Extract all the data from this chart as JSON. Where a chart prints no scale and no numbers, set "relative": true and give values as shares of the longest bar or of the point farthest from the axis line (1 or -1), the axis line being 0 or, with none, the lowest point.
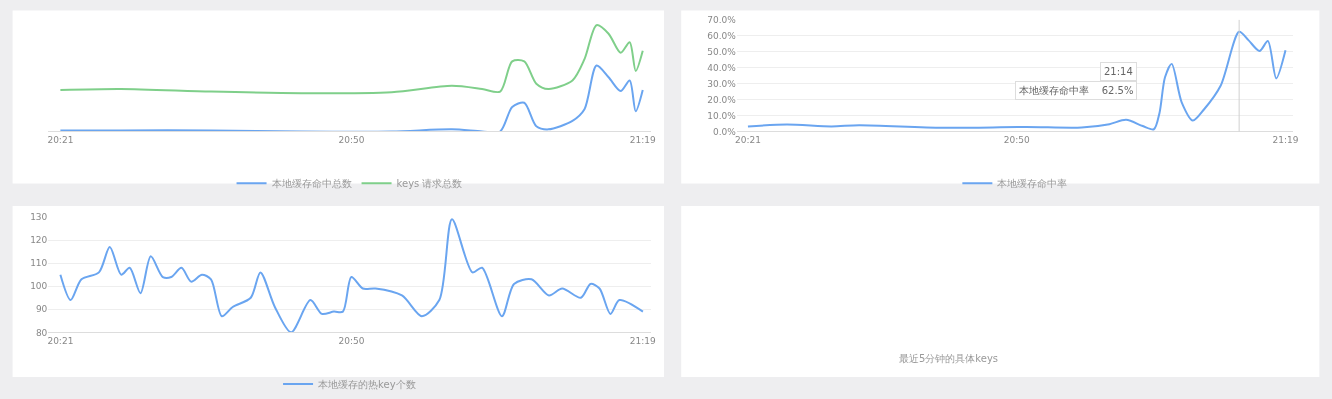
{
  "chart_data": [
    {
      "type": "line",
      "relative": true,
      "grid": "y",
      "legend": "bottom",
      "marker": "none",
      "line_style": "solid",
      "xlim": [
        20.33,
        21.33
      ],
      "xticks": [
        {
          "value": 20.35,
          "label": "20:21"
        },
        {
          "value": 20.8333,
          "label": "20:50"
        },
        {
          "value": 21.3167,
          "label": "21:19"
        }
      ],
      "series": [
        {
          "name": "本地缓存命中总数",
          "color": "#6aa5f0",
          "x": [
            20.35,
            20.45,
            20.6,
            20.75,
            20.9,
            21.0,
            21.05,
            21.08,
            21.1,
            21.12,
            21.14,
            21.16,
            21.2,
            21.22,
            21.24,
            21.26,
            21.28,
            21.295,
            21.305,
            21.3167
          ],
          "values": [
            0.01,
            0.01,
            0.01,
            0.0,
            0.0,
            0.02,
            0.0,
            0.0,
            0.23,
            0.27,
            0.05,
            0.02,
            0.1,
            0.21,
            0.62,
            0.51,
            0.38,
            0.48,
            0.19,
            0.39
          ]
        },
        {
          "name": "keys 请求总数",
          "color": "#7fcf8a",
          "x": [
            20.35,
            20.45,
            20.6,
            20.75,
            20.9,
            21.0,
            21.05,
            21.08,
            21.1,
            21.12,
            21.14,
            21.16,
            21.2,
            21.22,
            21.24,
            21.26,
            21.28,
            21.295,
            21.305,
            21.3167
          ],
          "values": [
            0.39,
            0.4,
            0.375,
            0.36,
            0.37,
            0.43,
            0.4,
            0.375,
            0.66,
            0.66,
            0.45,
            0.4,
            0.48,
            0.68,
            1.0,
            0.92,
            0.74,
            0.84,
            0.57,
            0.76
          ]
        }
      ]
    },
    {
      "type": "line",
      "grid": "y",
      "legend": "bottom",
      "marker": "none",
      "line_style": "solid",
      "xlim": [
        20.33,
        21.33
      ],
      "xticks": [
        {
          "value": 20.35,
          "label": "20:21"
        },
        {
          "value": 20.8333,
          "label": "20:50"
        },
        {
          "value": 21.3167,
          "label": "21:19"
        }
      ],
      "ylim": [
        0,
        70
      ],
      "yticks": [
        {
          "value": 0,
          "label": "0.0%"
        },
        {
          "value": 10,
          "label": "10.0%"
        },
        {
          "value": 20,
          "label": "20.0%"
        },
        {
          "value": 30,
          "label": "30.0%"
        },
        {
          "value": 40,
          "label": "40.0%"
        },
        {
          "value": 50,
          "label": "50.0%"
        },
        {
          "value": 60,
          "label": "60.0%"
        },
        {
          "value": 70,
          "label": "70.0%"
        }
      ],
      "ref_lines": [
        {
          "axis": "x",
          "value": 21.2333,
          "color": "#d0d0d0"
        }
      ],
      "annotations": [
        "21:14",
        "本地缓存命中率    62.5%"
      ],
      "series": [
        {
          "name": "本地缓存命中率",
          "color": "#6aa5f0",
          "x": [
            20.35,
            20.42,
            20.5,
            20.55,
            20.7,
            20.85,
            20.95,
            21.0,
            21.03,
            21.06,
            21.08,
            21.09,
            21.1,
            21.112,
            21.13,
            21.15,
            21.17,
            21.2,
            21.2333,
            21.25,
            21.27,
            21.285,
            21.3,
            21.3167
          ],
          "values": [
            3.2,
            4.4,
            3.2,
            3.9,
            2.3,
            2.8,
            2.5,
            4.6,
            7.3,
            3.4,
            1.4,
            11.5,
            34,
            42.4,
            18.3,
            6.9,
            13.8,
            28.7,
            62.5,
            57.3,
            50.5,
            56.7,
            33.3,
            50.9
          ]
        }
      ]
    },
    {
      "type": "line",
      "grid": "y",
      "legend": "bottom",
      "marker": "none",
      "line_style": "solid",
      "xlim": [
        20.33,
        21.33
      ],
      "xticks": [
        {
          "value": 20.35,
          "label": "20:21"
        },
        {
          "value": 20.8333,
          "label": "20:50"
        },
        {
          "value": 21.3167,
          "label": "21:19"
        }
      ],
      "ylim": [
        80,
        130
      ],
      "yticks": [
        80,
        90,
        100,
        110,
        120,
        130
      ],
      "series": [
        {
          "name": "本地缓存的热key个数",
          "color": "#6aa5f0",
          "x": [
            20.35,
            20.367,
            20.385,
            20.414,
            20.432,
            20.451,
            20.465,
            20.483,
            20.5,
            20.52,
            20.534,
            20.551,
            20.567,
            20.585,
            20.6,
            20.618,
            20.636,
            20.666,
            20.682,
            20.706,
            20.733,
            20.765,
            20.784,
            20.804,
            20.819,
            20.833,
            20.852,
            20.873,
            20.917,
            20.95,
            20.979,
            21.0,
            21.034,
            21.05,
            21.083,
            21.103,
            21.132,
            21.161,
            21.183,
            21.214,
            21.23,
            21.245,
            21.263,
            21.278,
            21.317
          ],
          "values": [
            105,
            94,
            103,
            106,
            117,
            105,
            108,
            97,
            113,
            104,
            104,
            108,
            102,
            105,
            103,
            87,
            91,
            95,
            106,
            91,
            80,
            94,
            88,
            89,
            89,
            104,
            99,
            99,
            96,
            87,
            94,
            129,
            106,
            108,
            87,
            101,
            103,
            96,
            99,
            95,
            101,
            99,
            88,
            94,
            89
          ]
        }
      ]
    },
    {
      "type": "other",
      "annotations": [
        "最近5分钟的具体keys"
      ]
    }
  ]
}
